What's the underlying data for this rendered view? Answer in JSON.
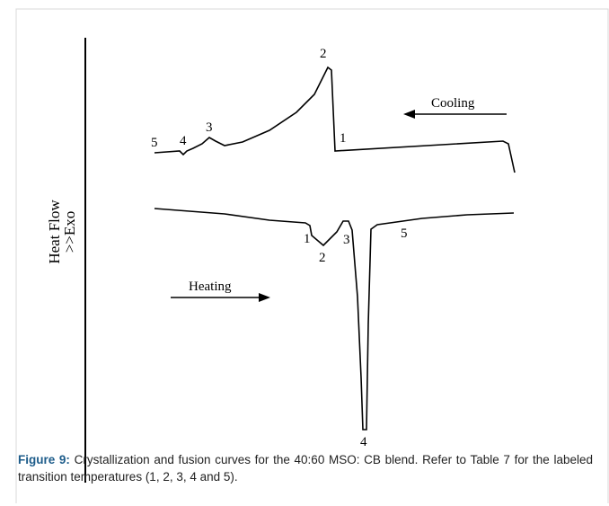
{
  "axis_label": {
    "line1": "Heat Flow",
    "line2": ">>Exo"
  },
  "cooling": {
    "label": "Cooling",
    "points": [
      "1",
      "2",
      "3",
      "4",
      "5"
    ]
  },
  "heating": {
    "label": "Heating",
    "points": [
      "1",
      "2",
      "3",
      "4",
      "5"
    ]
  },
  "caption": {
    "label": "Figure 9:",
    "text": "Crystallization and fusion curves for the 40:60 MSO: CB blend. Refer to Table 7 for the labeled transition temperatures (1, 2, 3, 4 and 5)."
  }
}
